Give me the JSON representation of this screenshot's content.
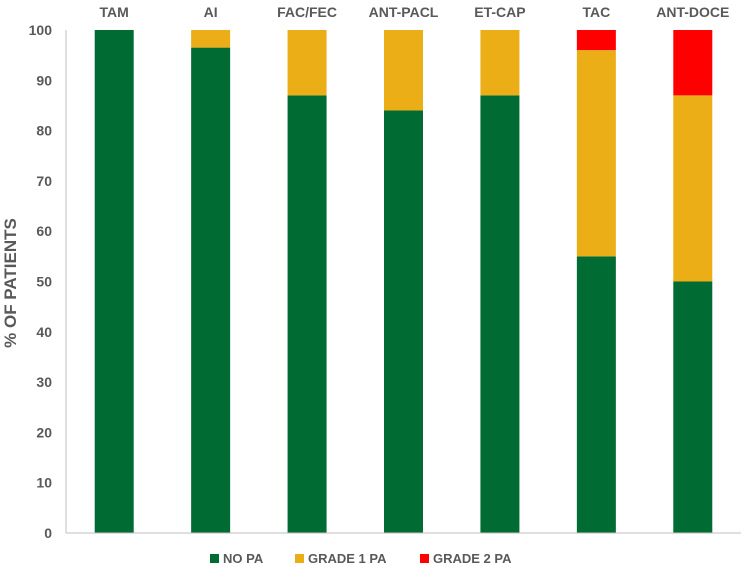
{
  "chart_data": {
    "type": "bar",
    "stacked": true,
    "categories": [
      "TAM",
      "AI",
      "FAC/FEC",
      "ANT-PACL",
      "ET-CAP",
      "TAC",
      "ANT-DOCE"
    ],
    "series": [
      {
        "name": "NO PA",
        "color": "#006B33",
        "values": [
          100,
          96.5,
          87,
          84,
          87,
          55,
          50
        ]
      },
      {
        "name": "GRADE 1 PA",
        "color": "#EBAE17",
        "values": [
          0,
          3.5,
          13,
          16,
          13,
          41,
          37
        ]
      },
      {
        "name": "GRADE 2 PA",
        "color": "#FF0000",
        "values": [
          0,
          0,
          0,
          0,
          0,
          4,
          13
        ]
      }
    ],
    "ylabel": "% OF PATIENTS",
    "xlabel": "",
    "title": "",
    "ylim": [
      0,
      100
    ],
    "yticks": [
      0,
      10,
      20,
      30,
      40,
      50,
      60,
      70,
      80,
      90,
      100
    ],
    "category_axis": "top",
    "legend_position": "bottom",
    "grid": false
  }
}
